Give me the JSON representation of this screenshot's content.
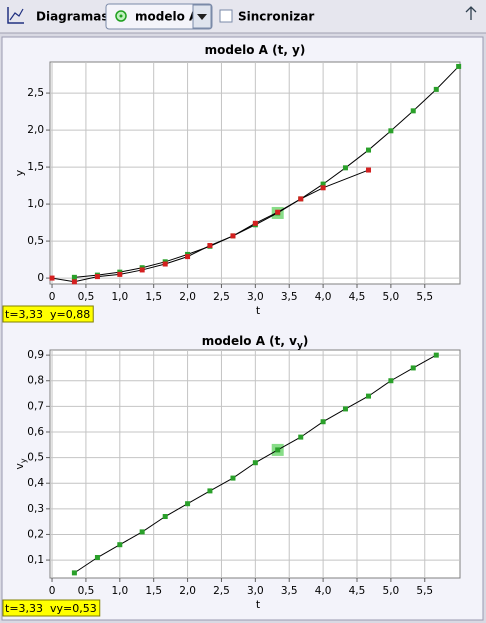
{
  "toolbar": {
    "label": "Diagramas",
    "track": "modelo A",
    "sync": "Sincronizar"
  },
  "chart_data": [
    {
      "type": "scatter",
      "title": "modelo A (t, y)",
      "xlabel": "t",
      "ylabel": "y",
      "xlim": [
        -0.03,
        6.02
      ],
      "ylim": [
        -0.08,
        2.92
      ],
      "xticks": [
        0,
        {
          "value": 0.5,
          "label": "0,5"
        },
        {
          "value": 1,
          "label": "1,0"
        },
        {
          "value": 1.5,
          "label": "1,5"
        },
        {
          "value": 2,
          "label": "2,0"
        },
        {
          "value": 2.5,
          "label": "2,5"
        },
        {
          "value": 3,
          "label": "3,0"
        },
        {
          "value": 3.5,
          "label": "3,5"
        },
        {
          "value": 4,
          "label": "4,0"
        },
        {
          "value": 4.5,
          "label": "4,5"
        },
        {
          "value": 5,
          "label": "5,0"
        },
        {
          "value": 5.5,
          "label": "5,5"
        }
      ],
      "yticks": [
        0,
        {
          "value": 0.5,
          "label": "0,5"
        },
        {
          "value": 1,
          "label": "1,0"
        },
        {
          "value": 1.5,
          "label": "1,5"
        },
        {
          "value": 2,
          "label": "2,0"
        },
        {
          "value": 2.5,
          "label": "2,5"
        }
      ],
      "grid": true,
      "series": [
        {
          "color": "#2aa02a",
          "line_color": "#000000",
          "x": [
            0.33,
            0.67,
            1.0,
            1.33,
            1.67,
            2.0,
            2.33,
            2.67,
            3.0,
            3.33,
            3.67,
            4.0,
            4.33,
            4.67,
            5.0,
            5.33,
            5.67,
            6.0
          ],
          "values": [
            0.01,
            0.04,
            0.08,
            0.14,
            0.22,
            0.32,
            0.43,
            0.57,
            0.72,
            0.88,
            1.07,
            1.27,
            1.49,
            1.73,
            1.99,
            2.26,
            2.55,
            2.86
          ]
        },
        {
          "color": "#d42020",
          "line_color": "#000000",
          "x": [
            0,
            0.33,
            0.67,
            1.0,
            1.33,
            1.67,
            2.0,
            2.33,
            2.67,
            3.0,
            3.33,
            3.67,
            4.0,
            4.67
          ],
          "values": [
            0,
            -0.05,
            0.02,
            0.05,
            0.11,
            0.19,
            0.29,
            0.44,
            0.57,
            0.74,
            0.89,
            1.07,
            1.22,
            1.46
          ]
        }
      ],
      "highlight": {
        "x": 3.33,
        "y": 0.88,
        "color": "#88dd88"
      },
      "readout": "t=3,33  y=0,88"
    },
    {
      "type": "scatter",
      "title": "modelo A (t, v",
      "title_sub": "y",
      "title_end": ")",
      "xlabel": "t",
      "ylabel": "v",
      "ylabel_sub": "y",
      "xlim": [
        -0.03,
        6.02
      ],
      "ylim": [
        0.03,
        0.92
      ],
      "xticks": [
        0,
        {
          "value": 0.5,
          "label": "0,5"
        },
        {
          "value": 1,
          "label": "1,0"
        },
        {
          "value": 1.5,
          "label": "1,5"
        },
        {
          "value": 2,
          "label": "2,0"
        },
        {
          "value": 2.5,
          "label": "2,5"
        },
        {
          "value": 3,
          "label": "3,0"
        },
        {
          "value": 3.5,
          "label": "3,5"
        },
        {
          "value": 4,
          "label": "4,0"
        },
        {
          "value": 4.5,
          "label": "4,5"
        },
        {
          "value": 5,
          "label": "5,0"
        },
        {
          "value": 5.5,
          "label": "5,5"
        }
      ],
      "yticks": [
        {
          "value": 0.1,
          "label": "0,1"
        },
        {
          "value": 0.2,
          "label": "0,2"
        },
        {
          "value": 0.3,
          "label": "0,3"
        },
        {
          "value": 0.4,
          "label": "0,4"
        },
        {
          "value": 0.5,
          "label": "0,5"
        },
        {
          "value": 0.6,
          "label": "0,6"
        },
        {
          "value": 0.7,
          "label": "0,7"
        },
        {
          "value": 0.8,
          "label": "0,8"
        },
        {
          "value": 0.9,
          "label": "0,9"
        }
      ],
      "grid": true,
      "series": [
        {
          "color": "#2aa02a",
          "line_color": "#000000",
          "x": [
            0.33,
            0.67,
            1.0,
            1.33,
            1.67,
            2.0,
            2.33,
            2.67,
            3.0,
            3.33,
            3.67,
            4.0,
            4.33,
            4.67,
            5.0,
            5.33,
            5.67
          ],
          "values": [
            0.05,
            0.11,
            0.16,
            0.21,
            0.27,
            0.32,
            0.37,
            0.42,
            0.48,
            0.53,
            0.58,
            0.64,
            0.69,
            0.74,
            0.8,
            0.85,
            0.9
          ]
        }
      ],
      "highlight": {
        "x": 3.33,
        "y": 0.53,
        "color": "#88dd88"
      },
      "readout": "t=3,33  vy=0,53"
    }
  ]
}
